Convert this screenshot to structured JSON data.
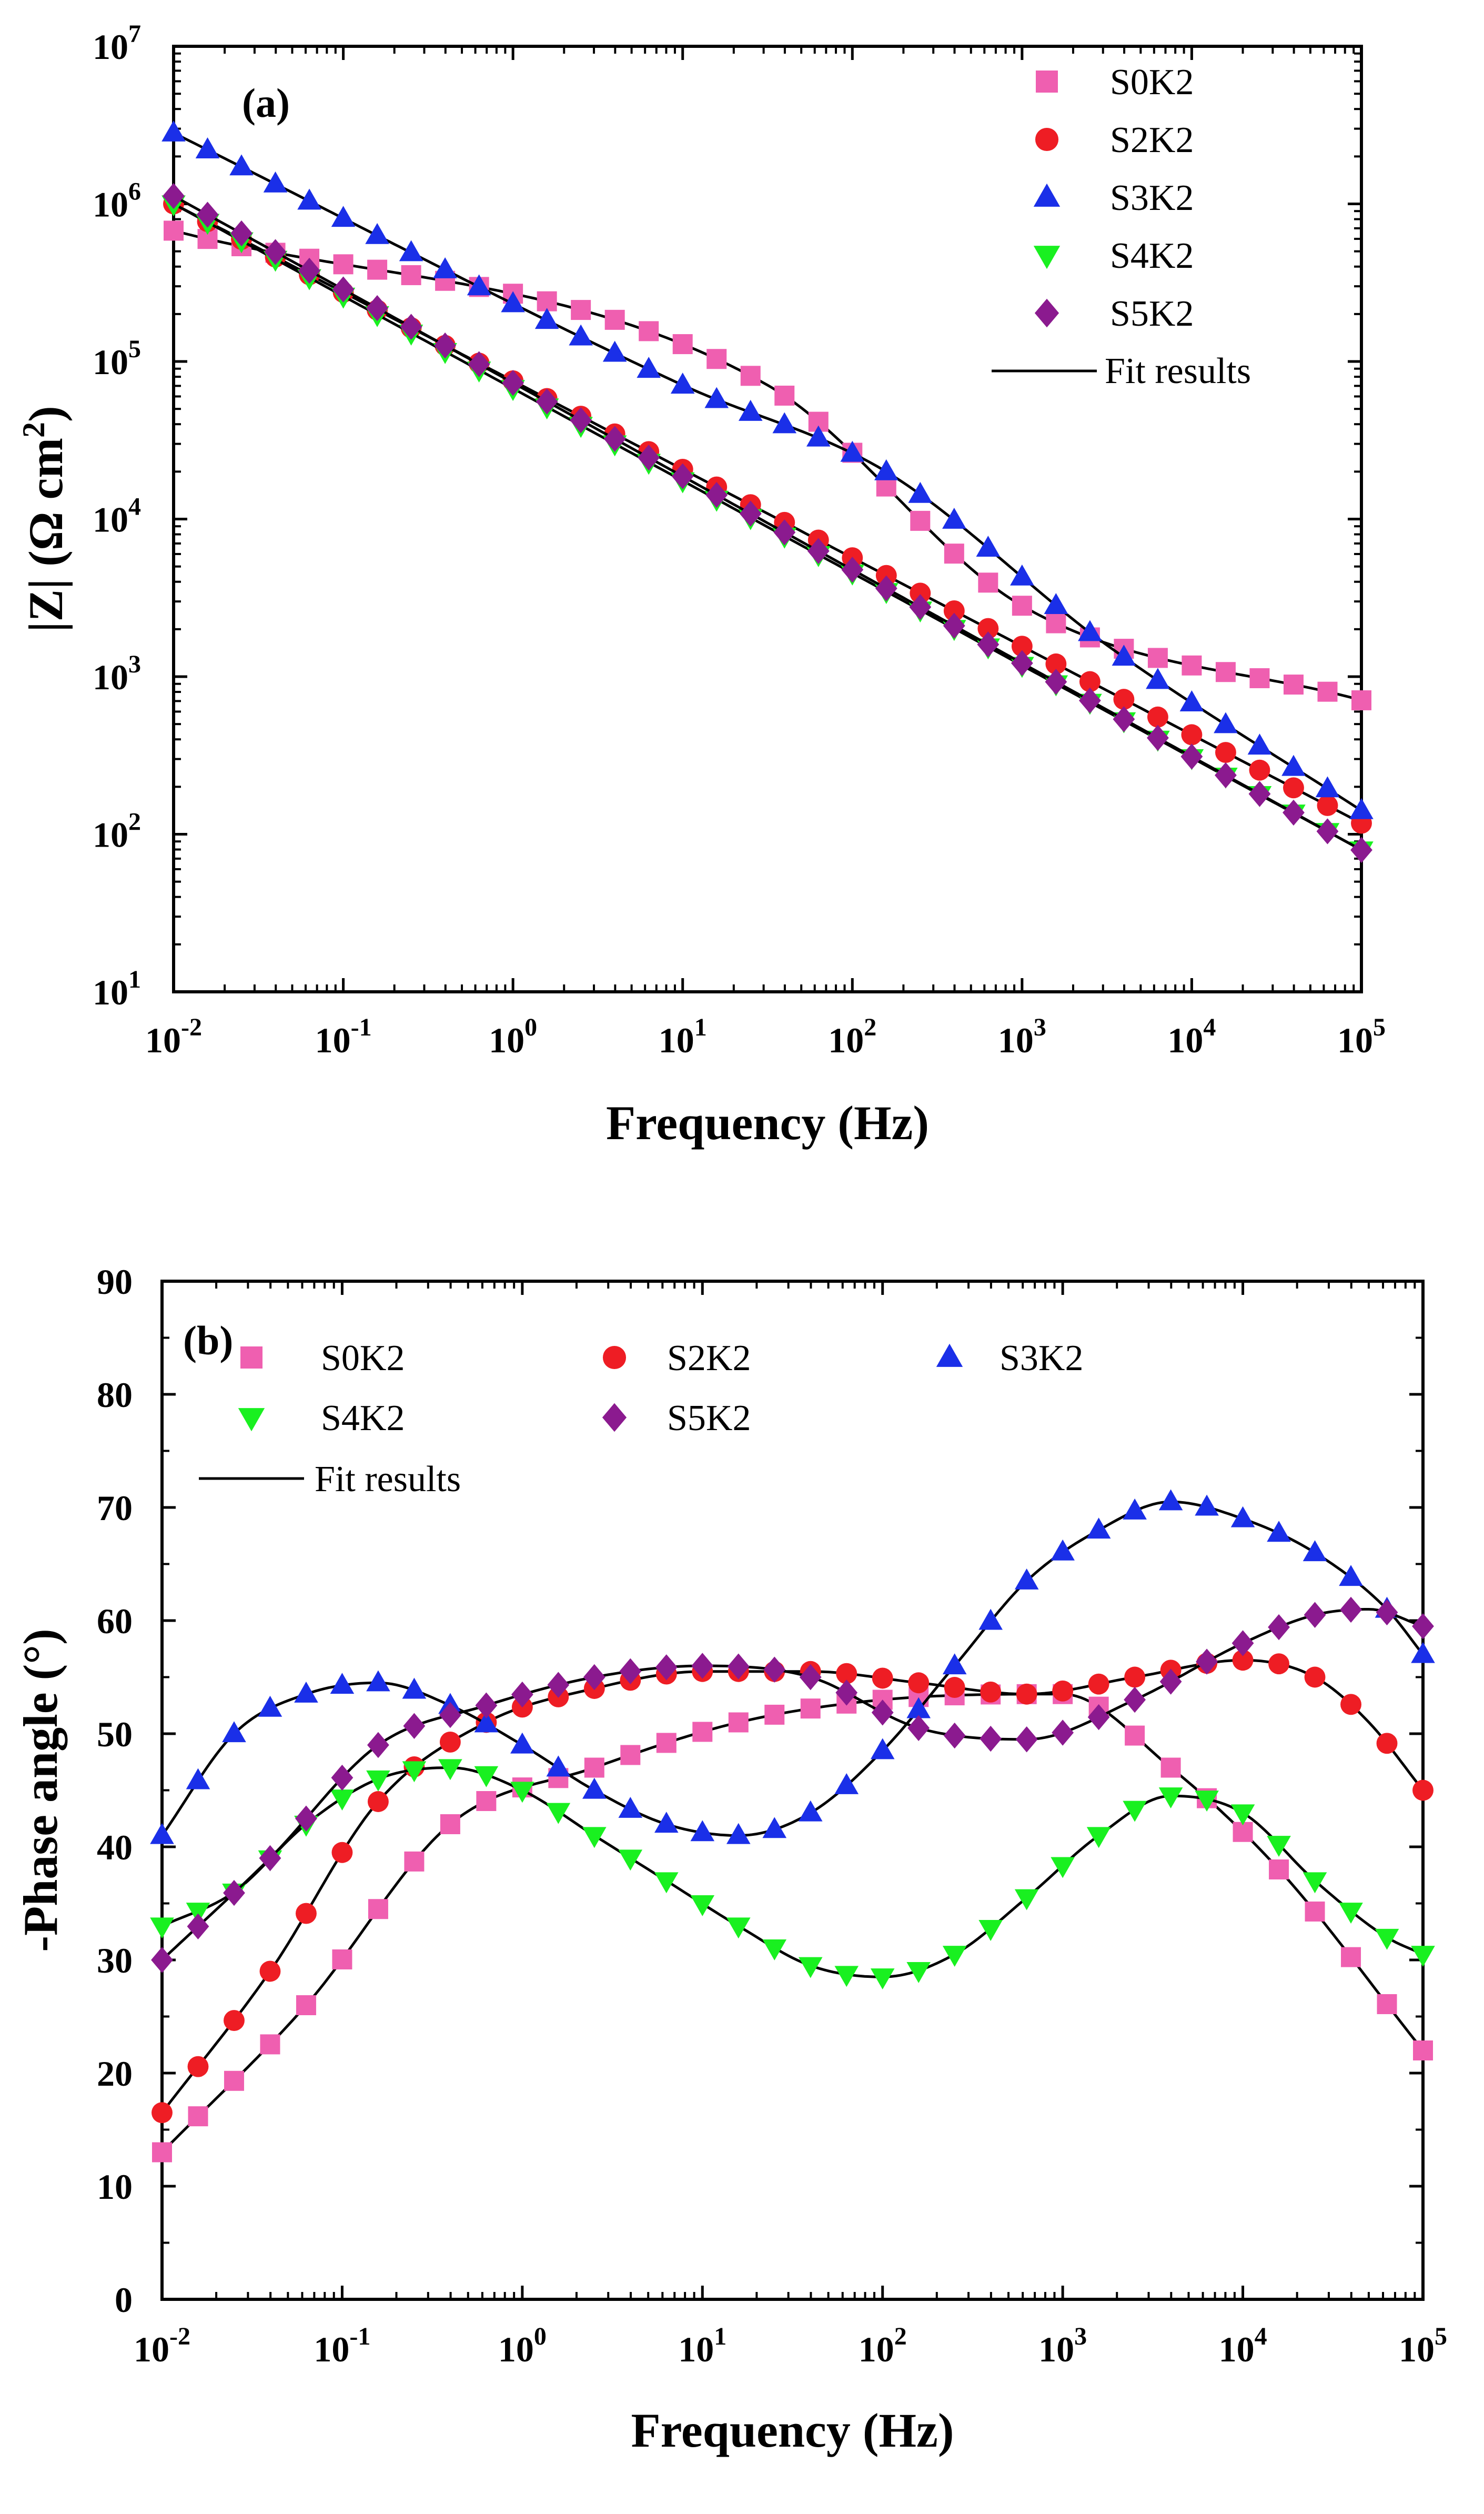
{
  "chart_data": [
    {
      "id": "a",
      "type": "scatter",
      "panel_label": "(a)",
      "xlabel": "Frequency (Hz)",
      "ylabel": "|Z| (Ω cm²)",
      "ylabel_parts": {
        "z": "|Z|",
        "units": "(Ω cm",
        "units_sup": "2",
        "units_close": ")"
      },
      "xscale": "log",
      "yscale": "log",
      "xlim": [
        0.01,
        100000
      ],
      "ylim": [
        10,
        10000000
      ],
      "x_ticks": [
        {
          "value": 0.01,
          "base": "10",
          "exp": "-2"
        },
        {
          "value": 0.1,
          "base": "10",
          "exp": "-1"
        },
        {
          "value": 1,
          "base": "10",
          "exp": "0"
        },
        {
          "value": 10,
          "base": "10",
          "exp": "1"
        },
        {
          "value": 100,
          "base": "10",
          "exp": "2"
        },
        {
          "value": 1000,
          "base": "10",
          "exp": "3"
        },
        {
          "value": 10000,
          "base": "10",
          "exp": "4"
        },
        {
          "value": 100000,
          "base": "10",
          "exp": "5"
        }
      ],
      "y_ticks": [
        {
          "value": 10,
          "base": "10",
          "exp": "1"
        },
        {
          "value": 100,
          "base": "10",
          "exp": "2"
        },
        {
          "value": 1000,
          "base": "10",
          "exp": "3"
        },
        {
          "value": 10000,
          "base": "10",
          "exp": "4"
        },
        {
          "value": 100000,
          "base": "10",
          "exp": "5"
        },
        {
          "value": 1000000,
          "base": "10",
          "exp": "6"
        },
        {
          "value": 10000000,
          "base": "10",
          "exp": "7"
        }
      ],
      "legend": {
        "position": "top-right",
        "fit_label": "Fit results"
      },
      "series": [
        {
          "name": "S0K2",
          "marker": "square",
          "color": "#ef5fb0",
          "logx": [
            -2,
            1.5,
            3,
            5
          ],
          "logy": [
            5.83,
            4.85,
            3.45,
            2.85
          ]
        },
        {
          "name": "S2K2",
          "marker": "circle",
          "color": "#ee1d24",
          "logx": [
            -2,
            5
          ],
          "logy": [
            6.0,
            2.07
          ]
        },
        {
          "name": "S3K2",
          "marker": "triangle-up",
          "color": "#1a2fe8",
          "logx": [
            -2,
            1,
            2.2,
            3.5,
            5
          ],
          "logy": [
            6.45,
            4.85,
            4.3,
            3.2,
            2.15
          ]
        },
        {
          "name": "S4K2",
          "marker": "triangle-down",
          "color": "#19f020",
          "logx": [
            -2,
            5
          ],
          "logy": [
            6.0,
            1.9
          ]
        },
        {
          "name": "S5K2",
          "marker": "diamond",
          "color": "#8b1a8f",
          "logx": [
            -2,
            5
          ],
          "logy": [
            6.05,
            1.9
          ]
        }
      ]
    },
    {
      "id": "b",
      "type": "scatter",
      "panel_label": "(b)",
      "xlabel": "Frequency (Hz)",
      "ylabel": "-Phase angle (°)",
      "xscale": "log",
      "xlim": [
        0.01,
        100000
      ],
      "ylim": [
        0,
        90
      ],
      "x_ticks": [
        {
          "value": 0.01,
          "base": "10",
          "exp": "-2"
        },
        {
          "value": 0.1,
          "base": "10",
          "exp": "-1"
        },
        {
          "value": 1,
          "base": "10",
          "exp": "0"
        },
        {
          "value": 10,
          "base": "10",
          "exp": "1"
        },
        {
          "value": 100,
          "base": "10",
          "exp": "2"
        },
        {
          "value": 1000,
          "base": "10",
          "exp": "3"
        },
        {
          "value": 10000,
          "base": "10",
          "exp": "4"
        },
        {
          "value": 100000,
          "base": "10",
          "exp": "5"
        }
      ],
      "y_ticks": [
        "0",
        "10",
        "20",
        "30",
        "40",
        "50",
        "60",
        "70",
        "80",
        "90"
      ],
      "legend": {
        "position": "top-left",
        "fit_label": "Fit results"
      },
      "series": [
        {
          "name": "S0K2",
          "marker": "square",
          "color": "#ef5fb0",
          "logx": [
            -2,
            -1.2,
            -0.4,
            0.4,
            1.2,
            2,
            3,
            3.6,
            4.2,
            5
          ],
          "phase": [
            13,
            26,
            42,
            47,
            51,
            53,
            53.5,
            47,
            38,
            22
          ]
        },
        {
          "name": "S2K2",
          "marker": "circle",
          "color": "#ee1d24",
          "logx": [
            -2,
            -1.4,
            -0.8,
            -0.2,
            0.4,
            1,
            1.6,
            2.2,
            2.8,
            3.4,
            4,
            4.4,
            4.7,
            5
          ],
          "phase": [
            16.5,
            29,
            44,
            51,
            54,
            55.5,
            55.5,
            54.5,
            53.5,
            55,
            56.5,
            55,
            51,
            45
          ]
        },
        {
          "name": "S3K2",
          "marker": "triangle-up",
          "color": "#1a2fe8",
          "logx": [
            -2,
            -1.6,
            -1.2,
            -0.8,
            -0.4,
            0,
            0.4,
            0.8,
            1.2,
            1.6,
            2,
            2.4,
            2.8,
            3.2,
            3.6,
            4,
            4.4,
            4.8,
            5
          ],
          "phase": [
            41,
            50,
            53.5,
            54.5,
            52.5,
            49,
            45,
            42,
            41,
            43,
            48.5,
            56,
            63.5,
            68,
            70.5,
            69,
            66,
            61,
            57
          ]
        },
        {
          "name": "S4K2",
          "marker": "triangle-down",
          "color": "#19f020",
          "logx": [
            -2,
            -1.6,
            -1.2,
            -0.8,
            -0.4,
            0,
            0.4,
            0.8,
            1.2,
            1.6,
            2,
            2.4,
            2.8,
            3.2,
            3.6,
            4,
            4.4,
            4.8,
            5
          ],
          "phase": [
            33,
            36,
            42,
            46,
            47,
            45,
            41,
            37,
            33,
            29.5,
            28.5,
            30.5,
            35.5,
            41,
            44.5,
            43,
            37,
            32,
            30.5
          ]
        },
        {
          "name": "S5K2",
          "marker": "diamond",
          "color": "#8b1a8f",
          "logx": [
            -2,
            -1.4,
            -0.8,
            -0.2,
            0.4,
            1,
            1.6,
            2.2,
            2.8,
            3.4,
            4,
            4.4,
            4.7,
            5
          ],
          "phase": [
            30,
            39,
            49,
            52.5,
            55,
            56,
            55,
            50.5,
            49.5,
            53,
            58,
            60.5,
            61,
            59.5
          ]
        }
      ]
    }
  ]
}
